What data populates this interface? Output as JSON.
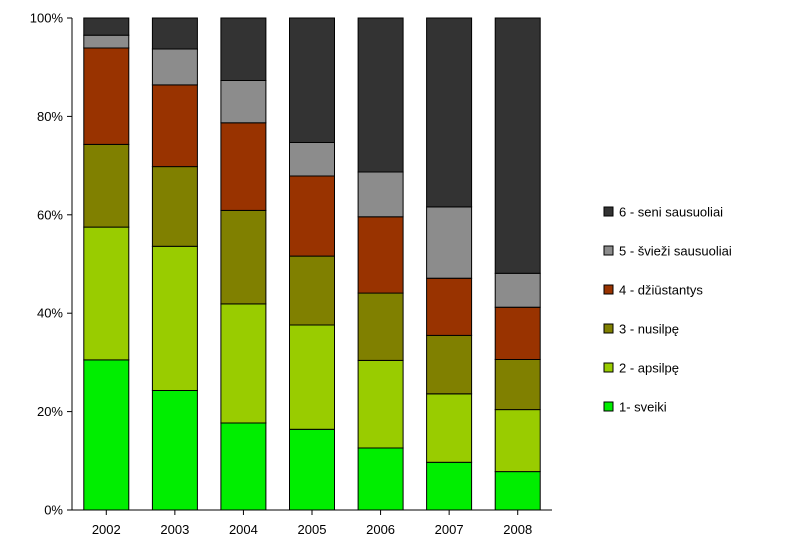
{
  "chart_data": {
    "type": "bar",
    "stacked": true,
    "percent": true,
    "categories": [
      "2002",
      "2003",
      "2004",
      "2005",
      "2006",
      "2007",
      "2008"
    ],
    "y_ticks": [
      "0%",
      "20%",
      "40%",
      "60%",
      "80%",
      "100%"
    ],
    "ylim": [
      0,
      100
    ],
    "grid": false,
    "legend_position": "right",
    "series": [
      {
        "name": "1- sveiki",
        "color": "#00ee00",
        "values": [
          30.5,
          24.3,
          17.7,
          16.4,
          12.6,
          9.7,
          7.8
        ]
      },
      {
        "name": "2 - apsilpę",
        "color": "#99cc00",
        "values": [
          27.0,
          29.3,
          24.2,
          21.2,
          17.8,
          13.9,
          12.6
        ]
      },
      {
        "name": "3 - nusilpę",
        "color": "#808000",
        "values": [
          16.8,
          16.2,
          19.0,
          14.0,
          13.7,
          11.9,
          10.2
        ]
      },
      {
        "name": "4 - džiūstantys",
        "color": "#993300",
        "values": [
          19.6,
          16.6,
          17.8,
          16.3,
          15.5,
          11.6,
          10.6
        ]
      },
      {
        "name": "5 - švieži sausuoliai",
        "color": "#8c8c8c",
        "values": [
          2.6,
          7.3,
          8.6,
          6.8,
          9.1,
          14.5,
          6.9
        ]
      },
      {
        "name": "6 - seni sausuoliai",
        "color": "#333333",
        "values": [
          3.5,
          6.3,
          12.7,
          25.3,
          31.3,
          38.4,
          51.9
        ]
      }
    ]
  }
}
